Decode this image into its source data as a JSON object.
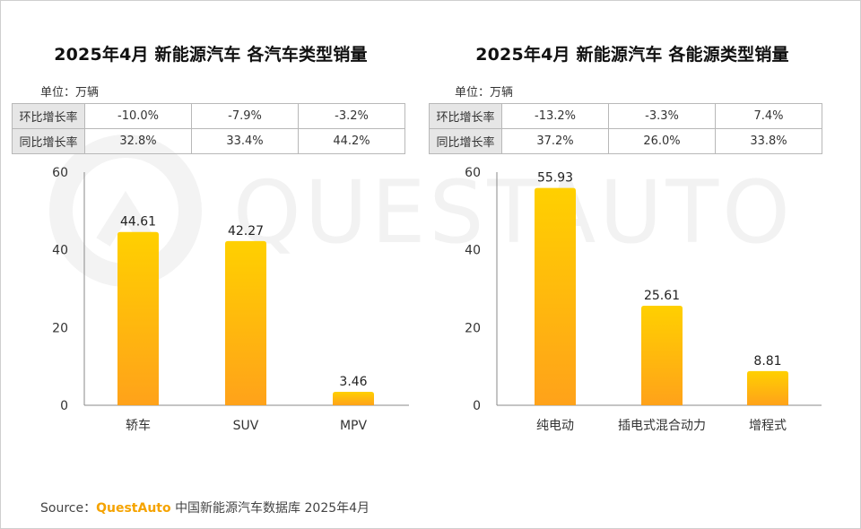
{
  "source": {
    "prefix": "Source：",
    "brand": "QuestAuto",
    "text": "中国新能源汽车数据库 2025年4月"
  },
  "watermark": "QUESTAUTO",
  "colors": {
    "bar_top": "#FFD000",
    "bar_bottom": "#FFA21A",
    "axis": "#888888",
    "brand": "#F5A300"
  },
  "panels": [
    {
      "title": "2025年4月 新能源汽车 各汽车类型销量",
      "unit": "单位：万辆",
      "table": [
        {
          "label": "环比增长率",
          "values": [
            "-10.0%",
            "-7.9%",
            "-3.2%"
          ]
        },
        {
          "label": "同比增长率",
          "values": [
            "32.8%",
            "33.4%",
            "44.2%"
          ]
        }
      ]
    },
    {
      "title": "2025年4月 新能源汽车 各能源类型销量",
      "unit": "单位：万辆",
      "table": [
        {
          "label": "环比增长率",
          "values": [
            "-13.2%",
            "-3.3%",
            "7.4%"
          ]
        },
        {
          "label": "同比增长率",
          "values": [
            "37.2%",
            "26.0%",
            "33.8%"
          ]
        }
      ]
    }
  ],
  "chart_data": [
    {
      "type": "bar",
      "title": "2025年4月 新能源汽车 各汽车类型销量",
      "categories": [
        "轿车",
        "SUV",
        "MPV"
      ],
      "values": [
        44.61,
        42.27,
        3.46
      ],
      "value_labels": [
        "44.61",
        "42.27",
        "3.46"
      ],
      "ylim": [
        0,
        60
      ],
      "yticks": [
        0,
        20,
        40,
        60
      ],
      "grid": false
    },
    {
      "type": "bar",
      "title": "2025年4月 新能源汽车 各能源类型销量",
      "categories": [
        "纯电动",
        "插电式混合动力",
        "增程式"
      ],
      "values": [
        55.93,
        25.61,
        8.81
      ],
      "value_labels": [
        "55.93",
        "25.61",
        "8.81"
      ],
      "ylim": [
        0,
        60
      ],
      "yticks": [
        0,
        20,
        40,
        60
      ],
      "grid": false
    }
  ]
}
